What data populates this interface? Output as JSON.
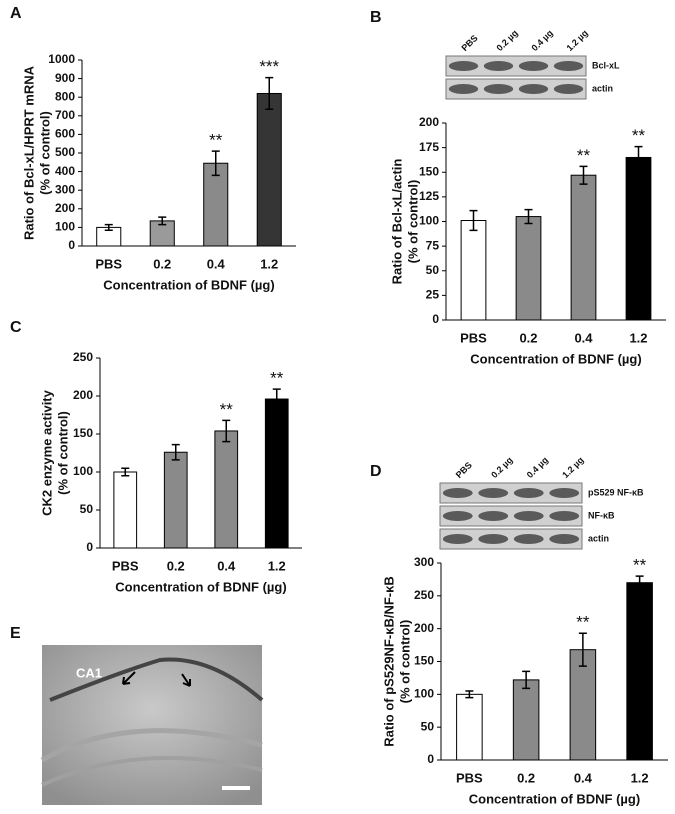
{
  "chart_data": [
    {
      "type": "bar",
      "panel": "A",
      "ylabel": [
        "Ratio of Bcl-xL/HPRT mRNA",
        "(% of control)"
      ],
      "xlabel": "Concentration of BDNF (µg)",
      "categories": [
        "PBS",
        "0.2",
        "0.4",
        "1.2"
      ],
      "values": [
        100,
        135,
        445,
        820
      ],
      "errors": [
        15,
        20,
        65,
        85
      ],
      "colors": [
        "#ffffff",
        "#9a9a9a",
        "#8a8a8a",
        "#353535"
      ],
      "ylim": [
        0,
        1000
      ],
      "yticks": [
        0,
        100,
        200,
        300,
        400,
        500,
        600,
        700,
        800,
        900,
        1000
      ],
      "annotations": [
        {
          "index": 2,
          "text": "**"
        },
        {
          "index": 3,
          "text": "***"
        }
      ]
    },
    {
      "type": "bar",
      "panel": "B",
      "ylabel": [
        "Ratio of Bcl-xL/actin",
        "(% of control)"
      ],
      "xlabel": "Concentration of BDNF (µg)",
      "categories": [
        "PBS",
        "0.2",
        "0.4",
        "1.2"
      ],
      "values": [
        101,
        105,
        147,
        165
      ],
      "errors": [
        10,
        7,
        9,
        11
      ],
      "colors": [
        "#ffffff",
        "#8a8a8a",
        "#8a8a8a",
        "#000000"
      ],
      "ylim": [
        0,
        200
      ],
      "yticks": [
        0,
        25,
        50,
        75,
        100,
        125,
        150,
        175,
        200
      ],
      "annotations": [
        {
          "index": 2,
          "text": "**"
        },
        {
          "index": 3,
          "text": "**"
        }
      ],
      "blot": {
        "lanes": [
          "PBS",
          "0.2 µg",
          "0.4 µg",
          "1.2 µg"
        ],
        "bands": [
          "Bcl-xL",
          "actin"
        ]
      }
    },
    {
      "type": "bar",
      "panel": "C",
      "ylabel": [
        "CK2 enzyme activity",
        "(% of control)"
      ],
      "xlabel": "Concentration of BDNF (µg)",
      "categories": [
        "PBS",
        "0.2",
        "0.4",
        "1.2"
      ],
      "values": [
        100,
        126,
        154,
        196
      ],
      "errors": [
        5,
        10,
        14,
        13
      ],
      "colors": [
        "#ffffff",
        "#8a8a8a",
        "#8a8a8a",
        "#000000"
      ],
      "ylim": [
        0,
        250
      ],
      "yticks": [
        0,
        50,
        100,
        150,
        200,
        250
      ],
      "annotations": [
        {
          "index": 2,
          "text": "**"
        },
        {
          "index": 3,
          "text": "**"
        }
      ]
    },
    {
      "type": "bar",
      "panel": "D",
      "ylabel": [
        "Ratio of pS529NF-κB/NF-κB",
        "(% of control)"
      ],
      "xlabel": "Concentration of BDNF (µg)",
      "categories": [
        "PBS",
        "0.2",
        "0.4",
        "1.2"
      ],
      "values": [
        100,
        122,
        168,
        270
      ],
      "errors": [
        5,
        13,
        25,
        10
      ],
      "colors": [
        "#ffffff",
        "#8a8a8a",
        "#8a8a8a",
        "#000000"
      ],
      "ylim": [
        0,
        300
      ],
      "yticks": [
        0,
        50,
        100,
        150,
        200,
        250,
        300
      ],
      "annotations": [
        {
          "index": 2,
          "text": "**"
        },
        {
          "index": 3,
          "text": "**"
        }
      ],
      "blot": {
        "lanes": [
          "PBS",
          "0.2 µg",
          "0.4 µg",
          "1.2 µg"
        ],
        "bands": [
          "pS529 NF-κB",
          "NF-κB",
          "actin"
        ]
      }
    }
  ],
  "image": {
    "panel": "E",
    "label": "CA1"
  }
}
